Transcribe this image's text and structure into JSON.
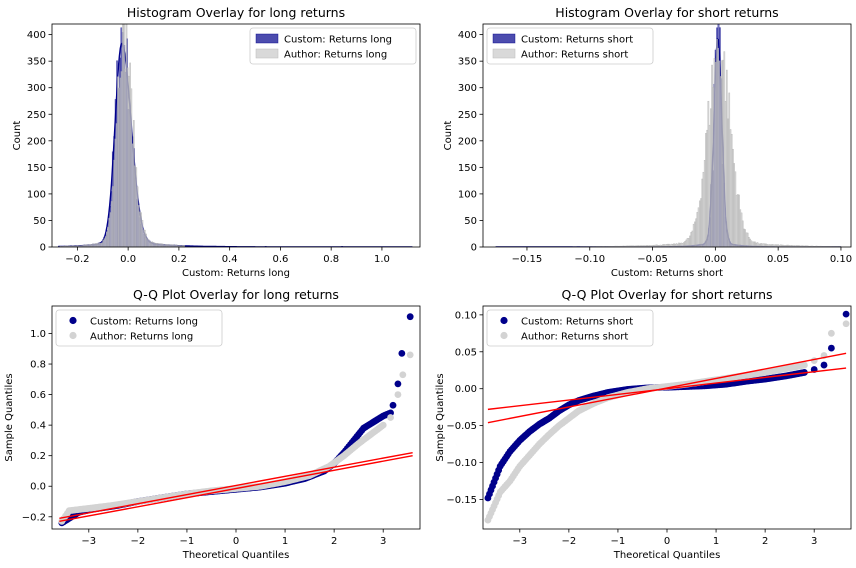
{
  "chart_data": [
    {
      "type": "histogram",
      "title": "Histogram Overlay for long returns",
      "xlabel": "Custom: Returns long",
      "ylabel": "Count",
      "xlim": [
        -0.3,
        1.15
      ],
      "ylim": [
        0,
        420
      ],
      "xticks": [
        -0.2,
        0.0,
        0.2,
        0.4,
        0.6,
        0.8,
        1.0
      ],
      "xtick_labels": [
        "−0.2",
        "0.0",
        "0.2",
        "0.4",
        "0.6",
        "0.8",
        "1.0"
      ],
      "yticks": [
        0,
        50,
        100,
        150,
        200,
        250,
        300,
        350,
        400
      ],
      "legend_position": "top-right",
      "series": [
        {
          "name": "Custom: Returns long",
          "color": "#00008b",
          "kde": true,
          "center": -0.025,
          "sigma_left": 0.025,
          "sigma_right": 0.035,
          "peak": 400,
          "tail_max": 1.12
        },
        {
          "name": "Author: Returns long",
          "color": "#d3d3d3",
          "center": -0.02,
          "sigma_left": 0.026,
          "sigma_right": 0.035,
          "peak": 408,
          "tail_max": 0.22
        }
      ]
    },
    {
      "type": "histogram",
      "title": "Histogram Overlay for short returns",
      "xlabel": "Custom: Returns short",
      "ylabel": "Count",
      "xlim": [
        -0.185,
        0.108
      ],
      "ylim": [
        0,
        420
      ],
      "xticks": [
        -0.15,
        -0.1,
        -0.05,
        0.0,
        0.05,
        0.1
      ],
      "xtick_labels": [
        "−0.15",
        "−0.10",
        "−0.05",
        "0.00",
        "0.05",
        "0.10"
      ],
      "yticks": [
        0,
        50,
        100,
        150,
        200,
        250,
        300,
        350,
        400
      ],
      "legend_position": "top-left",
      "series": [
        {
          "name": "Custom: Returns short",
          "color": "#00008b",
          "kde": true,
          "center": 0.002,
          "sigma_left": 0.003,
          "sigma_right": 0.003,
          "peak": 410,
          "tail_min": -0.175,
          "tail_max": 0.1
        },
        {
          "name": "Author: Returns short",
          "color": "#d3d3d3",
          "center": 0.003,
          "sigma_left": 0.009,
          "sigma_right": 0.009,
          "peak": 370,
          "tail_min": -0.175,
          "tail_max": 0.1
        }
      ]
    },
    {
      "type": "scatter",
      "title": "Q-Q Plot Overlay for long returns",
      "xlabel": "Theoretical Quantiles",
      "ylabel": "Sample Quantiles",
      "xlim": [
        -3.75,
        3.75
      ],
      "ylim": [
        -0.28,
        1.18
      ],
      "xticks": [
        -3,
        -2,
        -1,
        0,
        1,
        2,
        3
      ],
      "xtick_labels": [
        "−3",
        "−2",
        "−1",
        "0",
        "1",
        "2",
        "3"
      ],
      "yticks": [
        -0.2,
        0.0,
        0.2,
        0.4,
        0.6,
        0.8,
        1.0
      ],
      "ytick_labels": [
        "−0.2",
        "0.0",
        "0.2",
        "0.4",
        "0.6",
        "0.8",
        "1.0"
      ],
      "legend_position": "top-left",
      "series": [
        {
          "name": "Custom: Returns long",
          "color": "#00008b",
          "points": [
            [
              -3.55,
              -0.24
            ],
            [
              -3.2,
              -0.17
            ],
            [
              -3.0,
              -0.155
            ],
            [
              -2.7,
              -0.14
            ],
            [
              -2.4,
              -0.125
            ],
            [
              -2.0,
              -0.1
            ],
            [
              -1.5,
              -0.075
            ],
            [
              -1.0,
              -0.05
            ],
            [
              -0.5,
              -0.035
            ],
            [
              0,
              -0.02
            ],
            [
              0.5,
              -0.005
            ],
            [
              1.0,
              0.02
            ],
            [
              1.4,
              0.05
            ],
            [
              1.8,
              0.1
            ],
            [
              2.0,
              0.15
            ],
            [
              2.2,
              0.22
            ],
            [
              2.4,
              0.3
            ],
            [
              2.6,
              0.38
            ],
            [
              2.8,
              0.42
            ],
            [
              3.0,
              0.46
            ],
            [
              3.15,
              0.48
            ],
            [
              3.2,
              0.53
            ],
            [
              3.3,
              0.67
            ],
            [
              3.38,
              0.87
            ],
            [
              3.55,
              1.11
            ]
          ],
          "fit_line": [
            [
              -3.6,
              -0.23
            ],
            [
              3.6,
              0.2
            ]
          ]
        },
        {
          "name": "Author: Returns long",
          "color": "#d3d3d3",
          "points": [
            [
              -3.55,
              -0.23
            ],
            [
              -3.4,
              -0.16
            ],
            [
              -3.0,
              -0.145
            ],
            [
              -2.5,
              -0.125
            ],
            [
              -2.0,
              -0.1
            ],
            [
              -1.5,
              -0.075
            ],
            [
              -1.0,
              -0.05
            ],
            [
              -0.5,
              -0.03
            ],
            [
              0,
              -0.015
            ],
            [
              0.5,
              0.0
            ],
            [
              1.0,
              0.03
            ],
            [
              1.5,
              0.07
            ],
            [
              1.9,
              0.13
            ],
            [
              2.2,
              0.2
            ],
            [
              2.5,
              0.28
            ],
            [
              2.75,
              0.34
            ],
            [
              3.0,
              0.4
            ],
            [
              3.15,
              0.45
            ],
            [
              3.3,
              0.6
            ],
            [
              3.4,
              0.73
            ],
            [
              3.55,
              0.86
            ]
          ],
          "fit_line": [
            [
              -3.6,
              -0.21
            ],
            [
              3.6,
              0.22
            ]
          ]
        }
      ]
    },
    {
      "type": "scatter",
      "title": "Q-Q Plot Overlay for short returns",
      "xlabel": "Theoretical Quantiles",
      "ylabel": "Sample Quantiles",
      "xlim": [
        -3.75,
        3.75
      ],
      "ylim": [
        -0.19,
        0.112
      ],
      "xticks": [
        -3,
        -2,
        -1,
        0,
        1,
        2,
        3
      ],
      "xtick_labels": [
        "−3",
        "−2",
        "−1",
        "0",
        "1",
        "2",
        "3"
      ],
      "yticks": [
        -0.15,
        -0.1,
        -0.05,
        0.0,
        0.05,
        0.1
      ],
      "ytick_labels": [
        "−0.15",
        "−0.10",
        "−0.05",
        "0.00",
        "0.05",
        "0.10"
      ],
      "legend_position": "top-left",
      "series": [
        {
          "name": "Custom: Returns short",
          "color": "#00008b",
          "points": [
            [
              -3.65,
              -0.148
            ],
            [
              -3.4,
              -0.105
            ],
            [
              -3.2,
              -0.085
            ],
            [
              -3.0,
              -0.07
            ],
            [
              -2.8,
              -0.058
            ],
            [
              -2.6,
              -0.048
            ],
            [
              -2.4,
              -0.04
            ],
            [
              -2.2,
              -0.03
            ],
            [
              -2.0,
              -0.022
            ],
            [
              -1.8,
              -0.016
            ],
            [
              -1.5,
              -0.01
            ],
            [
              -1.2,
              -0.005
            ],
            [
              -0.8,
              -0.001
            ],
            [
              -0.4,
              0.001
            ],
            [
              0,
              0.002
            ],
            [
              0.4,
              0.003
            ],
            [
              0.8,
              0.004
            ],
            [
              1.2,
              0.006
            ],
            [
              1.6,
              0.01
            ],
            [
              2.0,
              0.013
            ],
            [
              2.4,
              0.017
            ],
            [
              2.8,
              0.022
            ],
            [
              3.0,
              0.026
            ],
            [
              3.2,
              0.032
            ],
            [
              3.35,
              0.055
            ],
            [
              3.65,
              0.101
            ]
          ],
          "fit_line": [
            [
              -3.65,
              -0.028
            ],
            [
              3.65,
              0.028
            ]
          ]
        },
        {
          "name": "Author: Returns short",
          "color": "#d3d3d3",
          "points": [
            [
              -3.65,
              -0.178
            ],
            [
              -3.4,
              -0.14
            ],
            [
              -3.2,
              -0.125
            ],
            [
              -3.0,
              -0.105
            ],
            [
              -2.8,
              -0.09
            ],
            [
              -2.6,
              -0.075
            ],
            [
              -2.4,
              -0.062
            ],
            [
              -2.2,
              -0.05
            ],
            [
              -2.0,
              -0.04
            ],
            [
              -1.8,
              -0.03
            ],
            [
              -1.5,
              -0.02
            ],
            [
              -1.2,
              -0.012
            ],
            [
              -0.8,
              -0.005
            ],
            [
              -0.4,
              0.0
            ],
            [
              0,
              0.003
            ],
            [
              0.4,
              0.006
            ],
            [
              0.8,
              0.01
            ],
            [
              1.2,
              0.014
            ],
            [
              1.6,
              0.018
            ],
            [
              2.0,
              0.022
            ],
            [
              2.4,
              0.027
            ],
            [
              2.8,
              0.032
            ],
            [
              3.0,
              0.038
            ],
            [
              3.2,
              0.045
            ],
            [
              3.35,
              0.075
            ],
            [
              3.65,
              0.088
            ]
          ],
          "fit_line": [
            [
              -3.65,
              -0.046
            ],
            [
              3.65,
              0.048
            ]
          ]
        }
      ]
    }
  ]
}
